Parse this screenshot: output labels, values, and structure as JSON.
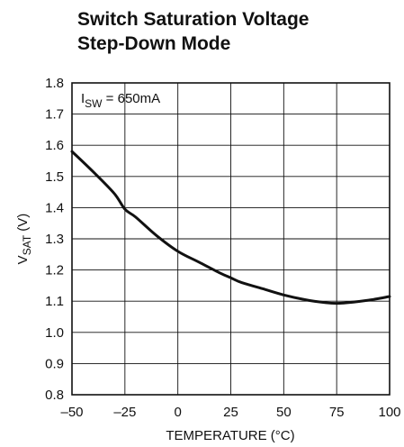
{
  "chart_data": {
    "type": "line",
    "title": [
      "Switch Saturation Voltage",
      "Step-Down Mode"
    ],
    "xlabel": "TEMPERATURE (°C)",
    "ylabel": {
      "main": "V",
      "sub": "SAT",
      "suffix": " (V)"
    },
    "xlim": [
      -50,
      100
    ],
    "ylim": [
      0.8,
      1.8
    ],
    "xticks": [
      -50,
      -25,
      0,
      25,
      50,
      75,
      100
    ],
    "xtick_labels": [
      "–50",
      "–25",
      "0",
      "25",
      "50",
      "75",
      "100"
    ],
    "yticks": [
      0.8,
      0.9,
      1.0,
      1.1,
      1.2,
      1.3,
      1.4,
      1.5,
      1.6,
      1.7,
      1.8
    ],
    "ytick_labels": [
      "0.8",
      "0.9",
      "1.0",
      "1.1",
      "1.2",
      "1.3",
      "1.4",
      "1.5",
      "1.6",
      "1.7",
      "1.8"
    ],
    "grid": true,
    "annotation": {
      "main": "I",
      "sub": "SW",
      "suffix": " = 650mA"
    },
    "series": [
      {
        "x": [
          -50,
          -40,
          -30,
          -25,
          -20,
          -10,
          0,
          10,
          20,
          25,
          30,
          40,
          50,
          60,
          70,
          75,
          80,
          90,
          100
        ],
        "y": [
          1.58,
          1.515,
          1.445,
          1.395,
          1.37,
          1.31,
          1.26,
          1.225,
          1.19,
          1.175,
          1.16,
          1.14,
          1.12,
          1.105,
          1.095,
          1.093,
          1.095,
          1.103,
          1.115
        ]
      }
    ]
  }
}
